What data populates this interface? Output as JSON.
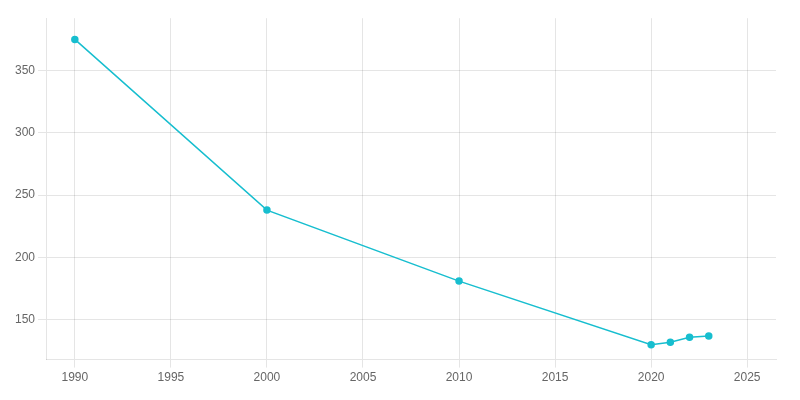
{
  "chart_data": {
    "type": "line",
    "x": [
      1990,
      2000,
      2010,
      2020,
      2021,
      2022,
      2023
    ],
    "values": [
      375,
      238,
      181,
      130,
      132,
      136,
      137
    ],
    "color": "#17becf",
    "marker": "circle",
    "xlim": [
      1988.5,
      2026.5
    ],
    "ylim": [
      118,
      392
    ],
    "xticks": [
      1990,
      1995,
      2000,
      2005,
      2010,
      2015,
      2020,
      2025
    ],
    "yticks": [
      150,
      200,
      250,
      300,
      350
    ],
    "grid": true
  }
}
